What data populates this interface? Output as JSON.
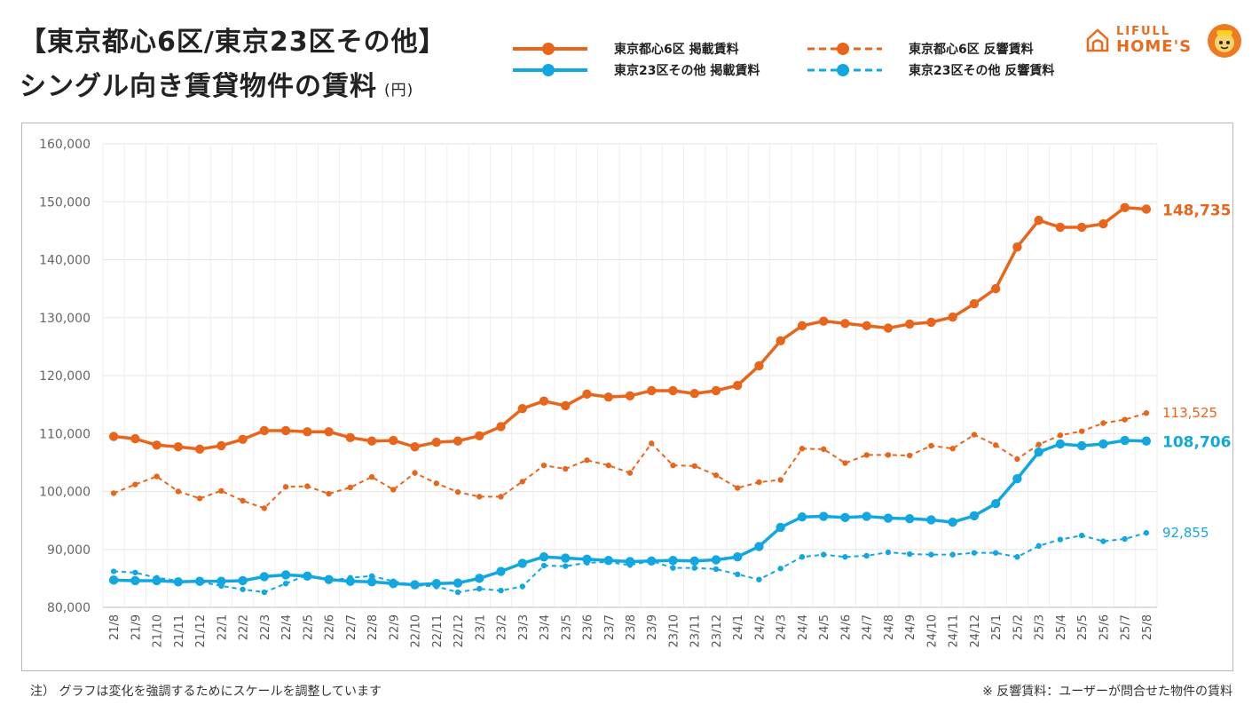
{
  "title": {
    "line1": "【東京都心6区/東京23区その他】",
    "line2": "シングル向き賃貸物件の賃料",
    "unit": "(円)"
  },
  "legend": [
    {
      "label": "東京都心6区 掲載賃料",
      "color": "#e8661c",
      "dashed": false
    },
    {
      "label": "東京23区その他 掲載賃料",
      "color": "#12a7e0",
      "dashed": false
    },
    {
      "label": "東京都心6区 反響賃料",
      "color": "#e8661c",
      "dashed": true
    },
    {
      "label": "東京23区その他 反響賃料",
      "color": "#12a7e0",
      "dashed": true
    }
  ],
  "logo": {
    "line1": "LIFULL",
    "line2": "HOME'S"
  },
  "notes": {
    "left": "注） グラフは変化を強調するためにスケールを調整しています",
    "right": "※ 反響賃料：ユーザーが問合せた物件の賃料"
  },
  "colors": {
    "orange": "#e8661c",
    "blue": "#12a7e0"
  },
  "chart_data": {
    "type": "line",
    "ylim": [
      80000,
      160000
    ],
    "yticks": [
      "80,000",
      "90,000",
      "100,000",
      "110,000",
      "120,000",
      "130,000",
      "140,000",
      "150,000",
      "160,000"
    ],
    "categories": [
      "21/8",
      "21/9",
      "21/10",
      "21/11",
      "21/12",
      "22/1",
      "22/2",
      "22/3",
      "22/4",
      "22/5",
      "22/6",
      "22/7",
      "22/8",
      "22/9",
      "22/10",
      "22/11",
      "22/12",
      "23/1",
      "23/2",
      "23/3",
      "23/4",
      "23/5",
      "23/6",
      "23/7",
      "23/8",
      "23/9",
      "23/10",
      "23/11",
      "23/12",
      "24/1",
      "24/2",
      "24/3",
      "24/4",
      "24/5",
      "24/6",
      "24/7",
      "24/8",
      "24/9",
      "24/10",
      "24/11",
      "24/12",
      "25/1",
      "25/2",
      "25/3",
      "25/4",
      "25/5",
      "25/6",
      "25/7",
      "25/8"
    ],
    "series": [
      {
        "name": "東京都心6区 掲載賃料",
        "color": "#e8661c",
        "dashed": false,
        "end_label": "148,735",
        "values": [
          109500,
          109100,
          108000,
          107700,
          107300,
          107900,
          109000,
          110500,
          110500,
          110300,
          110300,
          109300,
          108700,
          108800,
          107700,
          108500,
          108700,
          109600,
          111200,
          114300,
          115600,
          114800,
          116800,
          116300,
          116500,
          117400,
          117400,
          116900,
          117400,
          118300,
          121700,
          126000,
          128600,
          129400,
          129000,
          128600,
          128200,
          128900,
          129200,
          130100,
          132400,
          135000,
          142200,
          146800,
          145600,
          145600,
          146200,
          149000,
          148735
        ]
      },
      {
        "name": "東京都心6区 反響賃料",
        "color": "#e8661c",
        "dashed": true,
        "end_label": "113,525",
        "values": [
          99700,
          101200,
          102600,
          100000,
          98800,
          100100,
          98400,
          97100,
          100800,
          100900,
          99600,
          100700,
          102500,
          100300,
          103200,
          101400,
          99900,
          99100,
          99100,
          101700,
          104500,
          103900,
          105400,
          104500,
          103200,
          108300,
          104500,
          104400,
          102800,
          100600,
          101600,
          102000,
          107400,
          107300,
          104900,
          106300,
          106300,
          106200,
          107900,
          107400,
          109800,
          108000,
          105600,
          108100,
          109700,
          110400,
          111800,
          112400,
          113525
        ]
      },
      {
        "name": "東京23区その他 掲載賃料",
        "color": "#12a7e0",
        "dashed": false,
        "end_label": "108,706",
        "values": [
          84700,
          84600,
          84600,
          84400,
          84500,
          84500,
          84600,
          85300,
          85600,
          85400,
          84800,
          84500,
          84400,
          84100,
          83900,
          84100,
          84200,
          85000,
          86200,
          87600,
          88700,
          88500,
          88300,
          88100,
          87900,
          88000,
          88100,
          88000,
          88200,
          88700,
          90500,
          93800,
          95600,
          95700,
          95500,
          95700,
          95400,
          95300,
          95100,
          94700,
          95800,
          97900,
          102200,
          106800,
          108200,
          107900,
          108200,
          108800,
          108706
        ]
      },
      {
        "name": "東京23区その他 反響賃料",
        "color": "#12a7e0",
        "dashed": true,
        "end_label": "92,855",
        "values": [
          86200,
          86000,
          85100,
          84600,
          84400,
          83700,
          83100,
          82600,
          84100,
          85600,
          84600,
          85100,
          85400,
          84500,
          83800,
          83600,
          82600,
          83200,
          82900,
          83600,
          87200,
          87100,
          87700,
          87800,
          87300,
          88000,
          86800,
          86800,
          86600,
          85700,
          84800,
          86700,
          88700,
          89100,
          88700,
          88900,
          89500,
          89200,
          89100,
          89100,
          89400,
          89400,
          88700,
          90600,
          91700,
          92400,
          91400,
          91800,
          92855
        ]
      }
    ]
  }
}
